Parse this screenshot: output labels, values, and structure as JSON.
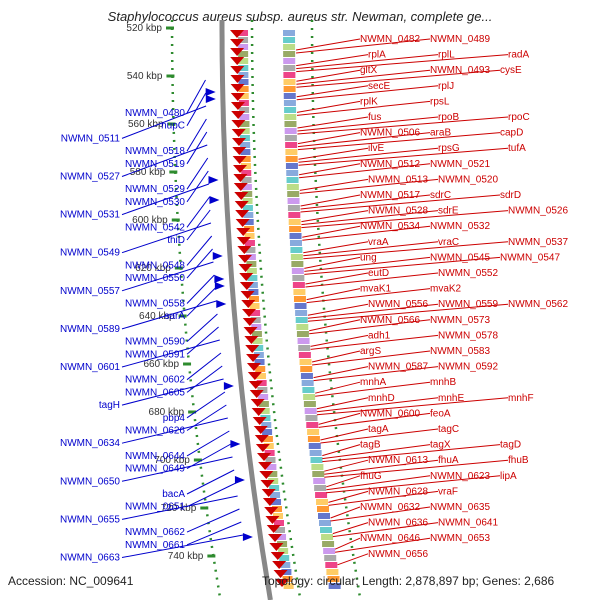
{
  "title": "Staphylococcus aureus subsp. aureus str. Newman, complete ge...",
  "footer": {
    "accession": "Accession: NC_009641",
    "topology": "Topology: circular; Length: 2,878,897 bp; Genes: 2,686"
  },
  "colors": {
    "forward": "#cc0000",
    "reverse": "#0000cc",
    "backbone": "#888888",
    "tick": "#2e8b2e"
  },
  "ticks": [
    "520 kbp",
    "540 kbp",
    "560 kbp",
    "580 kbp",
    "600 kbp",
    "620 kbp",
    "640 kbp",
    "660 kbp",
    "680 kbp",
    "700 kbp",
    "720 kbp",
    "740 kbp"
  ],
  "forward_labels": [
    "NWMN_0482",
    "NWMN_0489",
    "rplA",
    "rplL",
    "radA",
    "gltX",
    "NWMN_0493",
    "cysE",
    "secE",
    "rplJ",
    "rplK",
    "rpsL",
    "fus",
    "rpoB",
    "rpoC",
    "NWMN_0506",
    "araB",
    "capD",
    "ilvE",
    "rpsG",
    "tufA",
    "NWMN_0512",
    "NWMN_0521",
    "NWMN_0513",
    "NWMN_0520",
    "NWMN_0517",
    "sdrC",
    "sdrD",
    "NWMN_0528",
    "sdrE",
    "NWMN_0526",
    "NWMN_0534",
    "NWMN_0532",
    "vraA",
    "vraC",
    "NWMN_0537",
    "ung",
    "NWMN_0545",
    "NWMN_0547",
    "eutD",
    "NWMN_0552",
    "mvaK1",
    "mvaK2",
    "NWMN_0556",
    "NWMN_0559",
    "NWMN_0562",
    "NWMN_0566",
    "NWMN_0573",
    "adh1",
    "NWMN_0578",
    "argS",
    "NWMN_0583",
    "NWMN_0587",
    "NWMN_0592",
    "mnhA",
    "mnhB",
    "mnhD",
    "mnhE",
    "mnhF",
    "NWMN_0600",
    "feoA",
    "tagA",
    "tagC",
    "tagB",
    "tagX",
    "tagD",
    "NWMN_0613",
    "fhuA",
    "fhuB",
    "fhuG",
    "NWMN_0623",
    "lipA",
    "NWMN_0628",
    "vraF",
    "NWMN_0632",
    "NWMN_0635",
    "NWMN_0636",
    "NWMN_0641",
    "NWMN_0646",
    "NWMN_0653",
    "NWMN_0656"
  ],
  "reverse_labels": [
    "NWMN_0480",
    "nupC",
    "NWMN_0511",
    "NWMN_0518",
    "NWMN_0519",
    "NWMN_0527",
    "NWMN_0529",
    "NWMN_0530",
    "NWMN_0531",
    "NWMN_0542",
    "thiD",
    "NWMN_0549",
    "NWMN_0548",
    "NWMN_0550",
    "NWMN_0557",
    "NWMN_0558",
    "sarA",
    "NWMN_0589",
    "NWMN_0590",
    "NWMN_0591",
    "NWMN_0601",
    "NWMN_0602",
    "NWMN_0605",
    "tagH",
    "pbp4",
    "NWMN_0626",
    "NWMN_0634",
    "NWMN_0644",
    "NWMN_0649",
    "NWMN_0650",
    "bacA",
    "NWMN_0651",
    "NWMN_0655",
    "NWMN_0662",
    "NWMN_0661",
    "NWMN_0663"
  ]
}
